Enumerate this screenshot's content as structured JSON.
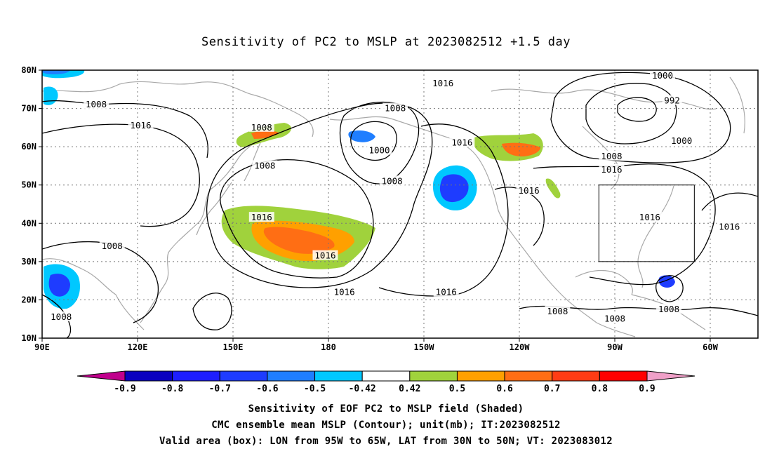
{
  "title": "Sensitivity of PC2 to MSLP at 2023082512 +1.5 day",
  "map": {
    "lat_labels": [
      "80N",
      "70N",
      "60N",
      "50N",
      "40N",
      "30N",
      "20N",
      "10N"
    ],
    "lon_labels": [
      "90E",
      "120E",
      "150E",
      "180",
      "150W",
      "120W",
      "90W",
      "60W"
    ],
    "lat_values": [
      80,
      70,
      60,
      50,
      40,
      30,
      20,
      10
    ],
    "lon_values": [
      90,
      120,
      150,
      180,
      210,
      240,
      270,
      300
    ],
    "lon_range": [
      90,
      315
    ],
    "lat_range": [
      10,
      80
    ],
    "grid": true,
    "valid_box": {
      "lon": [
        265,
        295
      ],
      "lat": [
        30,
        50
      ]
    },
    "contour_labels": [
      {
        "text": "1008",
        "lon": 107,
        "lat": 71
      },
      {
        "text": "1016",
        "lon": 121,
        "lat": 65.5
      },
      {
        "text": "1008",
        "lon": 159,
        "lat": 65
      },
      {
        "text": "1008",
        "lon": 160,
        "lat": 55
      },
      {
        "text": "1016",
        "lon": 159,
        "lat": 41.5
      },
      {
        "text": "1008",
        "lon": 112,
        "lat": 34
      },
      {
        "text": "1008",
        "lon": 96,
        "lat": 15.5
      },
      {
        "text": "1016",
        "lon": 179,
        "lat": 31.5
      },
      {
        "text": "1016",
        "lon": 185,
        "lat": 22
      },
      {
        "text": "1008",
        "lon": 201,
        "lat": 70
      },
      {
        "text": "1000",
        "lon": 196,
        "lat": 59
      },
      {
        "text": "1008",
        "lon": 200,
        "lat": 51
      },
      {
        "text": "1016",
        "lon": 216,
        "lat": 76.5
      },
      {
        "text": "1016",
        "lon": 222,
        "lat": 61
      },
      {
        "text": "1016",
        "lon": 217,
        "lat": 22
      },
      {
        "text": "1016",
        "lon": 243,
        "lat": 48.5
      },
      {
        "text": "1008",
        "lon": 252,
        "lat": 17
      },
      {
        "text": "1008",
        "lon": 270,
        "lat": 15
      },
      {
        "text": "1000",
        "lon": 285,
        "lat": 78.5
      },
      {
        "text": "992",
        "lon": 288,
        "lat": 72
      },
      {
        "text": "1000",
        "lon": 291,
        "lat": 61.5
      },
      {
        "text": "1008",
        "lon": 269,
        "lat": 57.5
      },
      {
        "text": "1016",
        "lon": 269,
        "lat": 54
      },
      {
        "text": "1016",
        "lon": 281,
        "lat": 41.5
      },
      {
        "text": "1016",
        "lon": 306,
        "lat": 39
      },
      {
        "text": "1008",
        "lon": 287,
        "lat": 17.5
      }
    ]
  },
  "colorbar": {
    "labels": [
      "-0.9",
      "-0.8",
      "-0.7",
      "-0.6",
      "-0.5",
      "-0.42",
      "0.42",
      "0.5",
      "0.6",
      "0.7",
      "0.8",
      "0.9"
    ],
    "colors": [
      "#c0008c",
      "#0a00bf",
      "#1e1eff",
      "#1e3cff",
      "#1f7eff",
      "#00c8ff",
      "#ffffff",
      "#a0d23c",
      "#ffa000",
      "#ff6e14",
      "#ff3c14",
      "#ff0000",
      "#f0a0c8"
    ]
  },
  "captions": {
    "line1": "Sensitivity of EOF PC2 to MSLP field (Shaded)",
    "line2": "CMC ensemble mean MSLP (Contour); unit(mb); IT:2023082512",
    "line3": "Valid area (box): LON from 95W to 65W, LAT from 30N to 50N; VT: 2023083012"
  }
}
